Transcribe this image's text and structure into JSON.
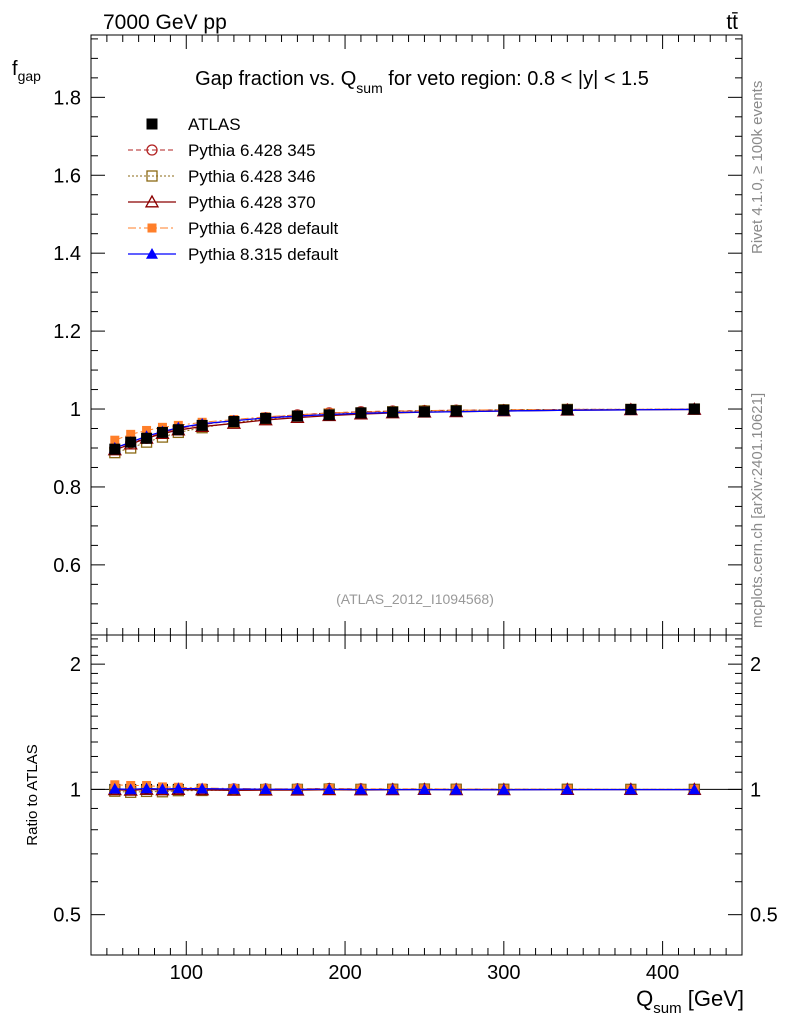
{
  "header": {
    "energy_label": "7000 GeV pp",
    "process_label": "tt̄"
  },
  "side_labels": {
    "rivet": "Rivet 4.1.0, ≥ 100k events",
    "source": "mcplots.cern.ch [arXiv:2401.10621]"
  },
  "chart_data": [
    {
      "type": "line",
      "panel": "main",
      "title": "Gap fraction vs. Q",
      "title_sub": "sum",
      "title_rest": " for veto region: 0.8 < |y| < 1.5",
      "ylabel": "f",
      "ylabel_sub": "gap",
      "ylim": [
        0.42,
        1.96
      ],
      "yticks": [
        0.6,
        0.8,
        1,
        1.2,
        1.4,
        1.6,
        1.8
      ],
      "ytick_labels": [
        "0.6",
        "0.8",
        "1",
        "1.2",
        "1.4",
        "1.6",
        "1.8"
      ],
      "watermark": "(ATLAS_2012_I1094568)",
      "legend_position": "top-left",
      "x": [
        55,
        65,
        75,
        85,
        95,
        110,
        130,
        150,
        170,
        190,
        210,
        230,
        250,
        270,
        300,
        340,
        380,
        420
      ],
      "series": [
        {
          "name": "ATLAS",
          "color": "#000000",
          "values": [
            0.897,
            0.915,
            0.925,
            0.94,
            0.947,
            0.958,
            0.968,
            0.976,
            0.982,
            0.985,
            0.99,
            0.992,
            0.993,
            0.995,
            0.997,
            0.998,
            0.999,
            1.0
          ]
        },
        {
          "name": "Pythia 6.428 345",
          "color": "#b22222",
          "values": [
            0.9,
            0.913,
            0.925,
            0.94,
            0.95,
            0.96,
            0.97,
            0.978,
            0.985,
            0.99,
            0.993,
            0.995,
            0.996,
            0.997,
            0.998,
            0.999,
            0.999,
            1.0
          ]
        },
        {
          "name": "Pythia 6.428 346",
          "color": "#8b6914",
          "values": [
            0.888,
            0.9,
            0.915,
            0.928,
            0.94,
            0.952,
            0.965,
            0.975,
            0.982,
            0.987,
            0.99,
            0.993,
            0.995,
            0.996,
            0.998,
            0.999,
            0.999,
            1.0
          ]
        },
        {
          "name": "Pythia 6.428 370",
          "color": "#8b0000",
          "values": [
            0.895,
            0.91,
            0.925,
            0.937,
            0.946,
            0.955,
            0.963,
            0.972,
            0.978,
            0.983,
            0.987,
            0.99,
            0.992,
            0.993,
            0.995,
            0.997,
            0.998,
            0.999
          ]
        },
        {
          "name": "Pythia 6.428 default",
          "color": "#ff7f2a",
          "values": [
            0.92,
            0.935,
            0.945,
            0.953,
            0.958,
            0.966,
            0.973,
            0.98,
            0.985,
            0.99,
            0.992,
            0.994,
            0.996,
            0.997,
            0.998,
            0.999,
            0.999,
            1.0
          ]
        },
        {
          "name": "Pythia 8.315 default",
          "color": "#0000ff",
          "values": [
            0.9,
            0.915,
            0.93,
            0.942,
            0.952,
            0.962,
            0.97,
            0.977,
            0.982,
            0.986,
            0.989,
            0.991,
            0.992,
            0.993,
            0.995,
            0.997,
            0.998,
            0.999
          ]
        }
      ]
    },
    {
      "type": "line",
      "panel": "ratio",
      "ylabel": "Ratio to ATLAS",
      "yscale": "log",
      "ylim": [
        0.4,
        2.35
      ],
      "yticks": [
        0.5,
        1,
        2
      ],
      "ytick_labels": [
        "0.5",
        "1",
        "2"
      ],
      "xlabel": "Q",
      "xlabel_sub": "sum",
      "xlabel_rest": " [GeV]",
      "xlim": [
        40,
        450
      ],
      "xticks": [
        100,
        200,
        300,
        400
      ],
      "xtick_labels": [
        "100",
        "200",
        "300",
        "400"
      ],
      "x": [
        55,
        65,
        75,
        85,
        95,
        110,
        130,
        150,
        170,
        190,
        210,
        230,
        250,
        270,
        300,
        340,
        380,
        420
      ],
      "series": [
        {
          "name": "Pythia 6.428 345",
          "values": [
            1.003,
            0.998,
            1.0,
            1.0,
            1.003,
            1.002,
            1.002,
            1.002,
            1.003,
            1.005,
            1.003,
            1.003,
            1.003,
            1.002,
            1.001,
            1.001,
            1.0,
            1.0
          ]
        },
        {
          "name": "Pythia 6.428 346",
          "values": [
            0.99,
            0.984,
            0.989,
            0.987,
            0.993,
            0.994,
            0.997,
            0.999,
            1.0,
            1.002,
            1.0,
            1.001,
            1.002,
            1.001,
            1.001,
            1.001,
            1.0,
            1.0
          ]
        },
        {
          "name": "Pythia 6.428 370",
          "values": [
            0.998,
            0.995,
            1.0,
            0.997,
            0.999,
            0.997,
            0.995,
            0.996,
            0.996,
            0.998,
            0.997,
            0.998,
            0.999,
            0.998,
            0.998,
            0.999,
            0.999,
            0.999
          ]
        },
        {
          "name": "Pythia 6.428 default",
          "values": [
            1.026,
            1.022,
            1.022,
            1.014,
            1.012,
            1.008,
            1.005,
            1.004,
            1.003,
            1.005,
            1.002,
            1.002,
            1.003,
            1.002,
            1.001,
            1.001,
            1.0,
            1.0
          ]
        },
        {
          "name": "Pythia 8.315 default",
          "values": [
            1.003,
            1.0,
            1.005,
            1.002,
            1.005,
            1.004,
            1.002,
            1.001,
            1.0,
            1.001,
            0.999,
            0.999,
            0.999,
            0.998,
            0.998,
            0.999,
            0.999,
            0.999
          ]
        }
      ]
    }
  ]
}
